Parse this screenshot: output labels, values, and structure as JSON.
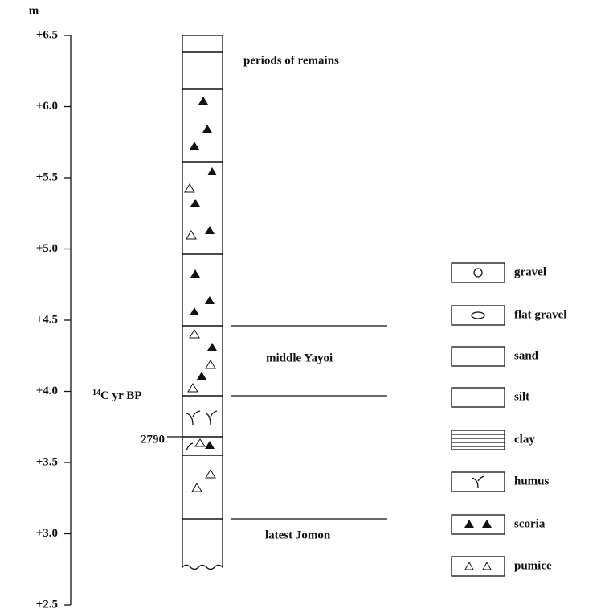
{
  "axis": {
    "unit": "m",
    "ticks": [
      {
        "value": 6.5,
        "label": "+6.5"
      },
      {
        "value": 6.0,
        "label": "+6.0"
      },
      {
        "value": 5.5,
        "label": "+5.5"
      },
      {
        "value": 5.0,
        "label": "+5.0"
      },
      {
        "value": 4.5,
        "label": "+4.5"
      },
      {
        "value": 4.0,
        "label": "+4.0"
      },
      {
        "value": 3.5,
        "label": "+3.5"
      },
      {
        "value": 3.0,
        "label": "+3.0"
      },
      {
        "value": 2.5,
        "label": "+2.5"
      }
    ]
  },
  "annotations": {
    "periods": "periods of remains",
    "middle": "middle Yayoi",
    "latest": "latest Jomon",
    "c14_sup": "14",
    "c14_text": "C yr BP",
    "date": "2790"
  },
  "legend": [
    "gravel",
    "flat gravel",
    "sand",
    "silt",
    "clay",
    "humus",
    "scoria",
    "pumice"
  ]
}
